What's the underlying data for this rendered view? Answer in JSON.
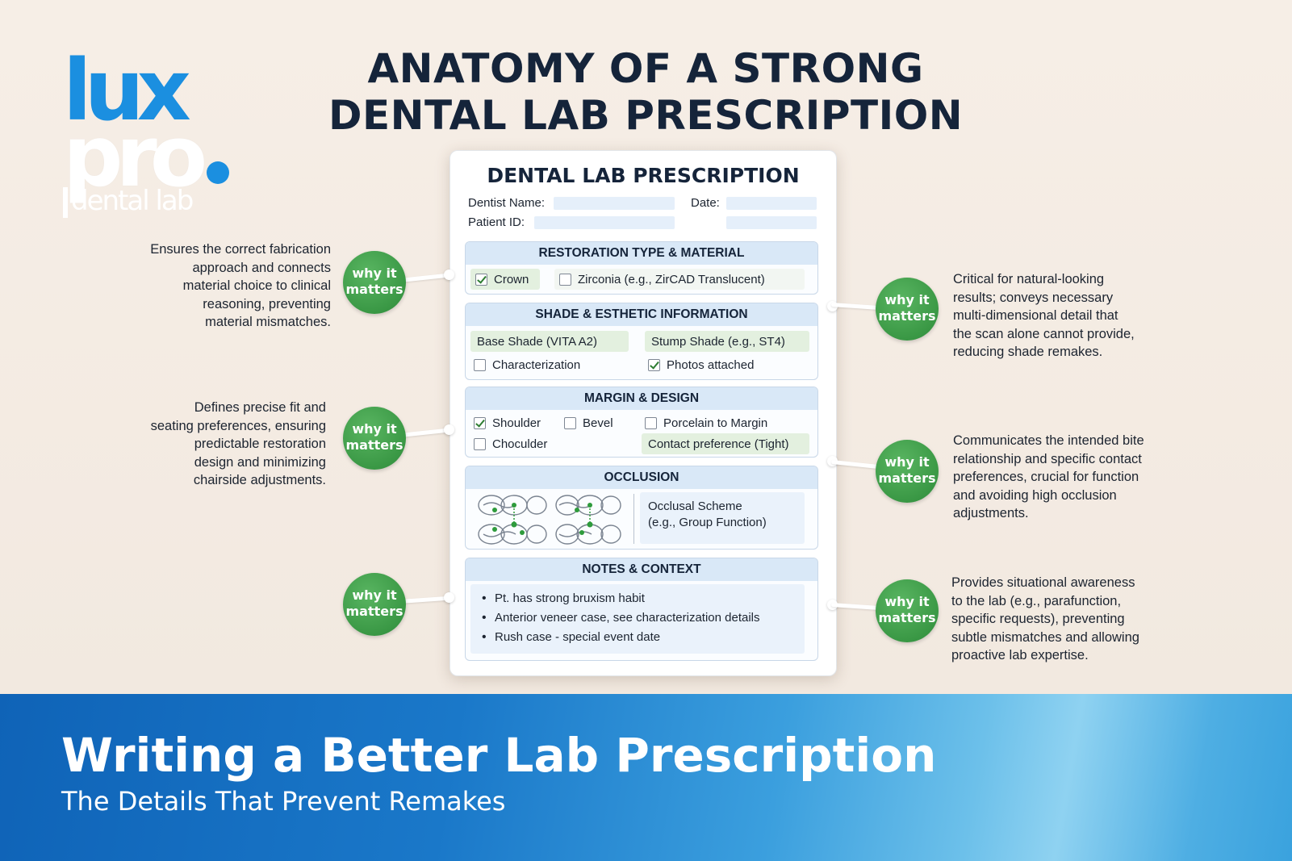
{
  "logo": {
    "line1": "lux",
    "line2": "pro",
    "line3": "dental lab"
  },
  "main_title": {
    "line1": "ANATOMY OF A STRONG",
    "line2": "DENTAL LAB PRESCRIPTION"
  },
  "form": {
    "title": "DENTAL LAB PRESCRIPTION",
    "dentist_label": "Dentist Name:",
    "date_label": "Date:",
    "patient_label": "Patient ID:",
    "restoration": {
      "heading": "RESTORATION TYPE & MATERIAL",
      "crown": "Crown",
      "zirconia": "Zirconia (e.g., ZirCAD Translucent)"
    },
    "shade": {
      "heading": "SHADE & ESTHETIC INFORMATION",
      "base_shade": "Base Shade (VITA A2)",
      "stump_shade": "Stump Shade (e.g., ST4)",
      "characterization": "Characterization",
      "photos": "Photos attached"
    },
    "margin": {
      "heading": "MARGIN & DESIGN",
      "shoulder": "Shoulder",
      "bevel": "Bevel",
      "porcelain": "Porcelain to Margin",
      "chamfer": "Choculder",
      "contact": "Contact preference (Tight)"
    },
    "occlusion": {
      "heading": "OCCLUSION",
      "scheme_line1": "Occlusal Scheme",
      "scheme_line2": "(e.g., Group Function)"
    },
    "notes": {
      "heading": "NOTES & CONTEXT",
      "items": [
        "Pt. has strong bruxism habit",
        "Anterior veneer case, see characterization details",
        "Rush case - special event date"
      ]
    }
  },
  "badge": {
    "line1": "why it",
    "line2": "matters"
  },
  "notes_left": [
    [
      "Ensures the correct fabrication",
      "approach and connects",
      "material choice to clinical",
      "reasoning, preventing",
      "material mismatches."
    ],
    [
      "Defines precise fit and",
      "seating preferences, ensuring",
      "predictable restoration",
      "design and minimizing",
      "chairside adjustments."
    ]
  ],
  "notes_right": [
    [
      "Critical for natural-looking",
      "results; conveys necessary",
      "multi-dimensional detail that",
      "the scan alone cannot provide,",
      "reducing shade remakes."
    ],
    [
      "Communicates the intended bite",
      "relationship and specific contact",
      "preferences, crucial for function",
      "and avoiding high occlusion",
      "adjustments."
    ],
    [
      "Provides situational awareness",
      "to the lab (e.g., parafunction,",
      "specific requests), preventing",
      "subtle mismatches and allowing",
      "proactive lab expertise."
    ]
  ],
  "banner": {
    "title": "Writing a Better Lab Prescription",
    "subtitle": "The Details That Prevent Remakes"
  },
  "colors": {
    "badge_green": "#3a9845",
    "banner_blue": "#1a78c9",
    "logo_blue": "#1b8fe0",
    "section_header": "#d9e8f7"
  }
}
